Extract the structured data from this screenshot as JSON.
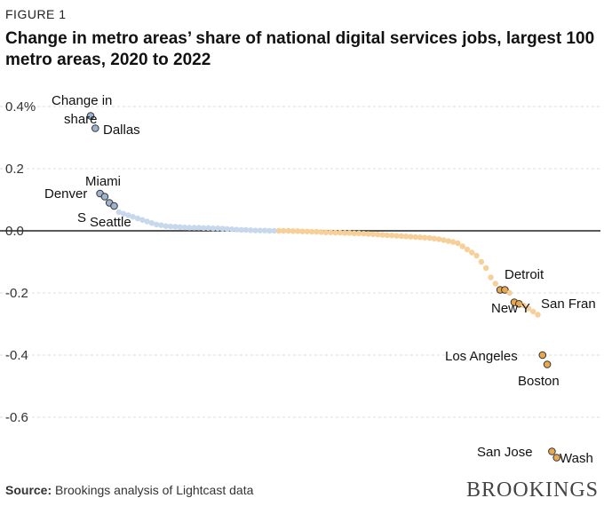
{
  "figure_label": "FIGURE 1",
  "title": "Change in metro areas’ share of national digital services jobs, largest 100 metro areas, 2020 to 2022",
  "source_label": "Source:",
  "source_text": " Brookings analysis of Lightcast data",
  "brand": "BROOKINGS",
  "colors": {
    "positive_fill": "#c7d7ec",
    "positive_hl": "#9db3d1",
    "negative_fill": "#f6cf99",
    "negative_hl": "#e9a84e",
    "highlight_stroke": "#333333",
    "zero_line": "#222222",
    "grid": "#dddddd"
  },
  "chart_data": {
    "type": "scatter",
    "title": "Change in metro areas’ share of national digital services jobs, largest 100 metro areas, 2020 to 2022",
    "xlabel": "",
    "ylabel": "",
    "ylim": [
      -0.72,
      0.45
    ],
    "y_ticks": [
      {
        "value": 0.4,
        "label": "0.4%"
      },
      {
        "value": 0.2,
        "label": "0.2"
      },
      {
        "value": 0.0,
        "label": "0.0"
      },
      {
        "value": -0.2,
        "label": "-0.2"
      },
      {
        "value": -0.4,
        "label": "-0.4"
      },
      {
        "value": -0.6,
        "label": "-0.6"
      }
    ],
    "grid": true,
    "x": [
      1,
      2,
      3,
      4,
      5,
      6,
      7,
      8,
      9,
      10,
      11,
      12,
      13,
      14,
      15,
      16,
      17,
      18,
      19,
      20,
      21,
      22,
      23,
      24,
      25,
      26,
      27,
      28,
      29,
      30,
      31,
      32,
      33,
      34,
      35,
      36,
      37,
      38,
      39,
      40,
      41,
      42,
      43,
      44,
      45,
      46,
      47,
      48,
      49,
      50,
      51,
      52,
      53,
      54,
      55,
      56,
      57,
      58,
      59,
      60,
      61,
      62,
      63,
      64,
      65,
      66,
      67,
      68,
      69,
      70,
      71,
      72,
      73,
      74,
      75,
      76,
      77,
      78,
      79,
      80,
      81,
      82,
      83,
      84,
      85,
      86,
      87,
      88,
      89,
      90,
      91,
      92,
      93,
      94,
      95,
      96,
      97,
      98,
      99,
      100
    ],
    "y": [
      0.37,
      0.33,
      0.12,
      0.11,
      0.09,
      0.08,
      0.06,
      0.055,
      0.05,
      0.045,
      0.04,
      0.035,
      0.03,
      0.025,
      0.02,
      0.018,
      0.015,
      0.014,
      0.013,
      0.012,
      0.011,
      0.01,
      0.01,
      0.01,
      0.009,
      0.009,
      0.008,
      0.008,
      0.007,
      0.006,
      0.005,
      0.004,
      0.003,
      0.003,
      0.002,
      0.001,
      0.001,
      0.001,
      0.0,
      0.0,
      0.0,
      0.0,
      0.0,
      -0.001,
      -0.001,
      -0.002,
      -0.002,
      -0.003,
      -0.003,
      -0.004,
      -0.005,
      -0.005,
      -0.006,
      -0.006,
      -0.007,
      -0.007,
      -0.008,
      -0.008,
      -0.009,
      -0.01,
      -0.011,
      -0.012,
      -0.013,
      -0.014,
      -0.015,
      -0.016,
      -0.017,
      -0.018,
      -0.019,
      -0.02,
      -0.021,
      -0.022,
      -0.023,
      -0.025,
      -0.027,
      -0.03,
      -0.033,
      -0.036,
      -0.04,
      -0.05,
      -0.06,
      -0.07,
      -0.08,
      -0.1,
      -0.12,
      -0.15,
      -0.17,
      -0.19,
      -0.19,
      -0.2,
      -0.23,
      -0.235,
      -0.24,
      -0.25,
      -0.26,
      -0.27,
      -0.4,
      -0.43,
      -0.71,
      -0.73
    ],
    "highlights": [
      {
        "index": 0,
        "label": "Change in share"
      },
      {
        "index": 1,
        "label": "Dallas"
      },
      {
        "index": 2,
        "label": "Miami"
      },
      {
        "index": 3,
        "label": "Denver"
      },
      {
        "index": 4,
        "label": "S"
      },
      {
        "index": 5,
        "label": "Seattle"
      },
      {
        "index": 87,
        "label": "Detroit"
      },
      {
        "index": 88,
        "label": ""
      },
      {
        "index": 90,
        "label": "New Y"
      },
      {
        "index": 91,
        "label": "San Fran"
      },
      {
        "index": 96,
        "label": "Los Angeles"
      },
      {
        "index": 97,
        "label": "Boston"
      },
      {
        "index": 98,
        "label": "San Jose"
      },
      {
        "index": 99,
        "label": "Wash"
      }
    ]
  }
}
